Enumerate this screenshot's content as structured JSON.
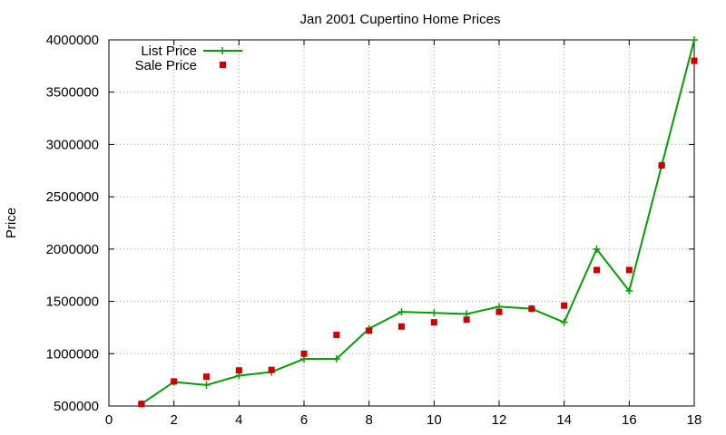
{
  "chart_data": {
    "type": "line",
    "title": "Jan 2001 Cupertino Home Prices",
    "xlabel": "",
    "ylabel": "Price",
    "xlim": [
      0,
      18
    ],
    "ylim": [
      500000,
      4000000
    ],
    "xticks": [
      0,
      2,
      4,
      6,
      8,
      10,
      12,
      14,
      16,
      18
    ],
    "yticks": [
      500000,
      1000000,
      1500000,
      2000000,
      2500000,
      3000000,
      3500000,
      4000000
    ],
    "grid": true,
    "legend_position": "top-left",
    "series": [
      {
        "name": "List Price",
        "style": "line-with-plus-markers",
        "color": "#00a000",
        "x": [
          1,
          2,
          3,
          4,
          5,
          6,
          7,
          8,
          9,
          10,
          11,
          12,
          13,
          14,
          15,
          16,
          17,
          18
        ],
        "y": [
          520000,
          730000,
          700000,
          790000,
          825000,
          950000,
          950000,
          1240000,
          1400000,
          1390000,
          1380000,
          1450000,
          1430000,
          1300000,
          2000000,
          1600000,
          2800000,
          4000000
        ]
      },
      {
        "name": "Sale Price",
        "style": "square-markers",
        "color": "#cc0000",
        "x": [
          1,
          2,
          3,
          4,
          5,
          6,
          7,
          8,
          9,
          10,
          11,
          12,
          13,
          14,
          15,
          16,
          17,
          18
        ],
        "y": [
          520000,
          735000,
          780000,
          840000,
          845000,
          1000000,
          1180000,
          1220000,
          1260000,
          1300000,
          1325000,
          1400000,
          1430000,
          1460000,
          1800000,
          1800000,
          2800000,
          3800000
        ]
      }
    ]
  }
}
